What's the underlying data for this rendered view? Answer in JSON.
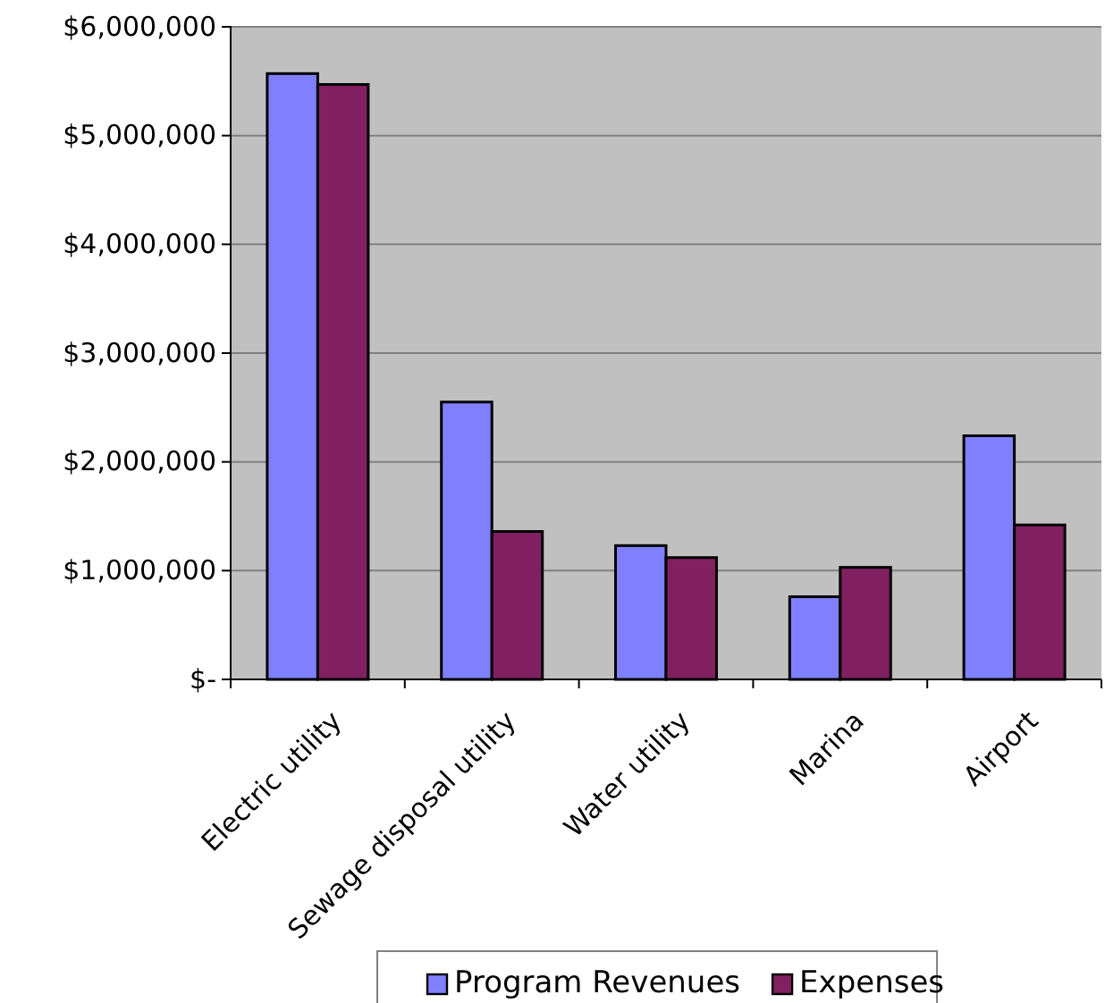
{
  "chart_data": {
    "type": "bar",
    "categories": [
      "Electric utility",
      "Sewage disposal utility",
      "Water utility",
      "Marina",
      "Airport"
    ],
    "series": [
      {
        "name": "Program Revenues",
        "color": "#8080ff",
        "values": [
          5570000,
          2550000,
          1230000,
          760000,
          2240000
        ]
      },
      {
        "name": "Expenses",
        "color": "#802060",
        "values": [
          5470000,
          1360000,
          1120000,
          1030000,
          1420000
        ]
      }
    ],
    "ylim": [
      0,
      6000000
    ],
    "yticks": [
      {
        "value": 0,
        "label": "$-"
      },
      {
        "value": 1000000,
        "label": "$1,000,000"
      },
      {
        "value": 2000000,
        "label": "$2,000,000"
      },
      {
        "value": 3000000,
        "label": "$3,000,000"
      },
      {
        "value": 4000000,
        "label": "$4,000,000"
      },
      {
        "value": 5000000,
        "label": "$5,000,000"
      },
      {
        "value": 6000000,
        "label": "$6,000,000"
      }
    ],
    "grid": "y",
    "legend": "bottom"
  }
}
